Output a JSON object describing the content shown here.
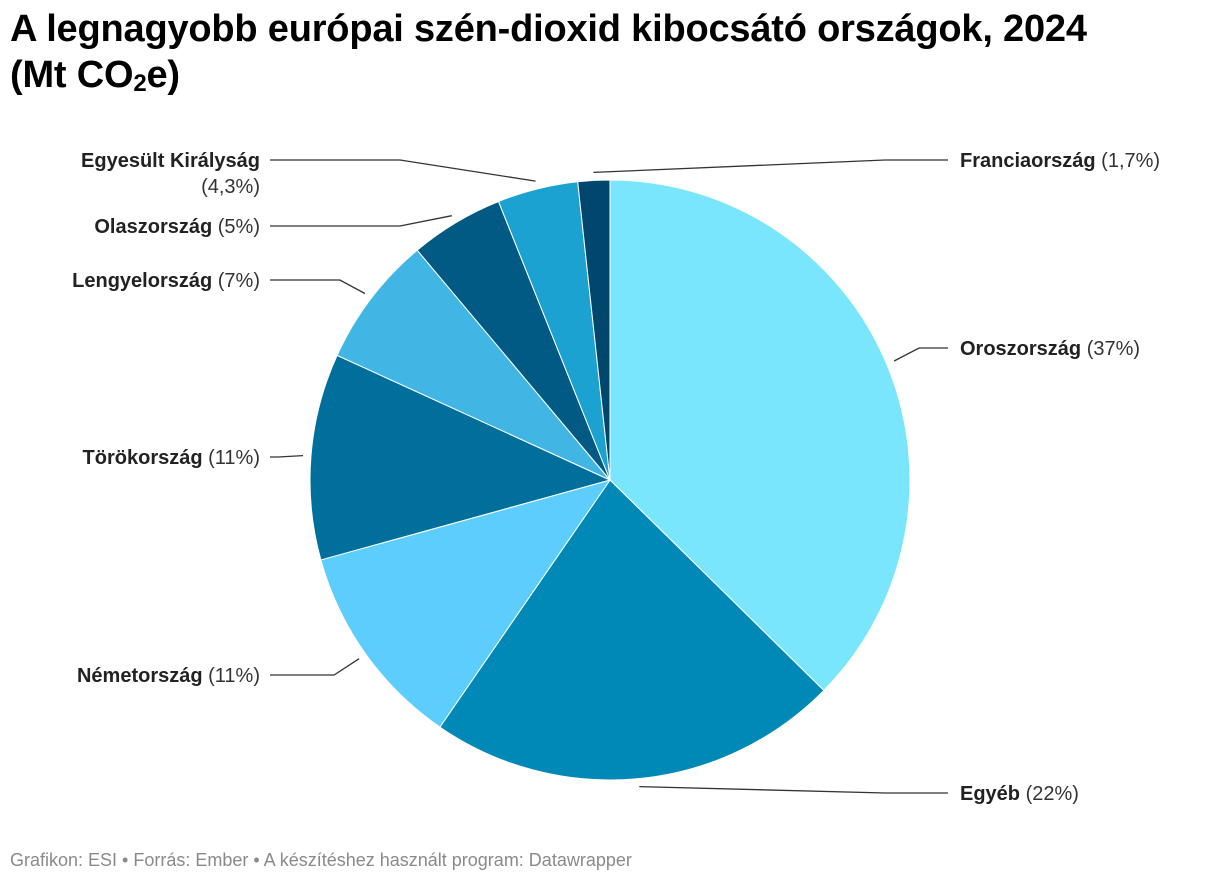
{
  "title": {
    "main": "A legnagyobb európai szén-dioxid kibocsátó országok, 2024",
    "unit_prefix": "(Mt CO",
    "unit_sub": "2",
    "unit_suffix": "e)"
  },
  "chart_data": {
    "type": "pie",
    "title": "A legnagyobb európai szén-dioxid kibocsátó országok, 2024 (Mt CO₂e)",
    "slices": [
      {
        "label": "Oroszország",
        "value": 37,
        "pct_label": "(37%)",
        "color": "#7ae6fd"
      },
      {
        "label": "Egyéb",
        "value": 22,
        "pct_label": "(22%)",
        "color": "#0089b6"
      },
      {
        "label": "Németország",
        "value": 11,
        "pct_label": "(11%)",
        "color": "#5ccdfc"
      },
      {
        "label": "Törökország",
        "value": 11,
        "pct_label": "(11%)",
        "color": "#006f9c"
      },
      {
        "label": "Lengyelország",
        "value": 7,
        "pct_label": "(7%)",
        "color": "#41b6e4"
      },
      {
        "label": "Olaszország",
        "value": 5,
        "pct_label": "(5%)",
        "color": "#005a84"
      },
      {
        "label": "Egyesült Királyság",
        "value": 4.3,
        "pct_label": "(4,3%)",
        "color": "#1ba2d0"
      },
      {
        "label": "Franciaország",
        "value": 1.7,
        "pct_label": "(1,7%)",
        "color": "#00466d"
      }
    ],
    "legend": "none",
    "start": "12 o'clock, clockwise"
  },
  "footer": "Grafikon: ESI • Forrás: Ember • A készítéshez használt program: Datawrapper"
}
